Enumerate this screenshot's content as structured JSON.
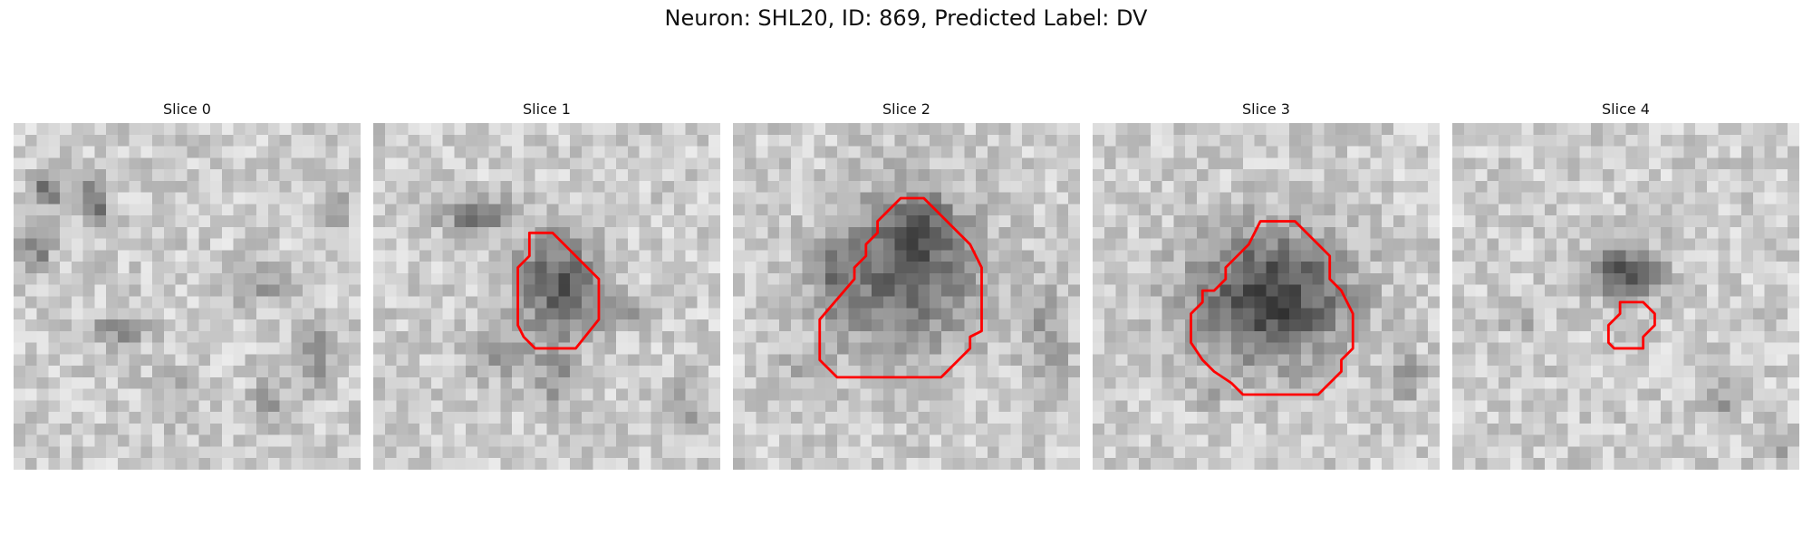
{
  "figure": {
    "title": "Neuron: SHL20, ID: 869, Predicted Label: DV"
  },
  "slices": [
    {
      "label": "Slice 0",
      "has_outline": false
    },
    {
      "label": "Slice 1",
      "has_outline": true
    },
    {
      "label": "Slice 2",
      "has_outline": true
    },
    {
      "label": "Slice 3",
      "has_outline": true
    },
    {
      "label": "Slice 4",
      "has_outline": true
    }
  ],
  "style": {
    "outline_color": "#ff0000",
    "colormap": "grayscale"
  }
}
